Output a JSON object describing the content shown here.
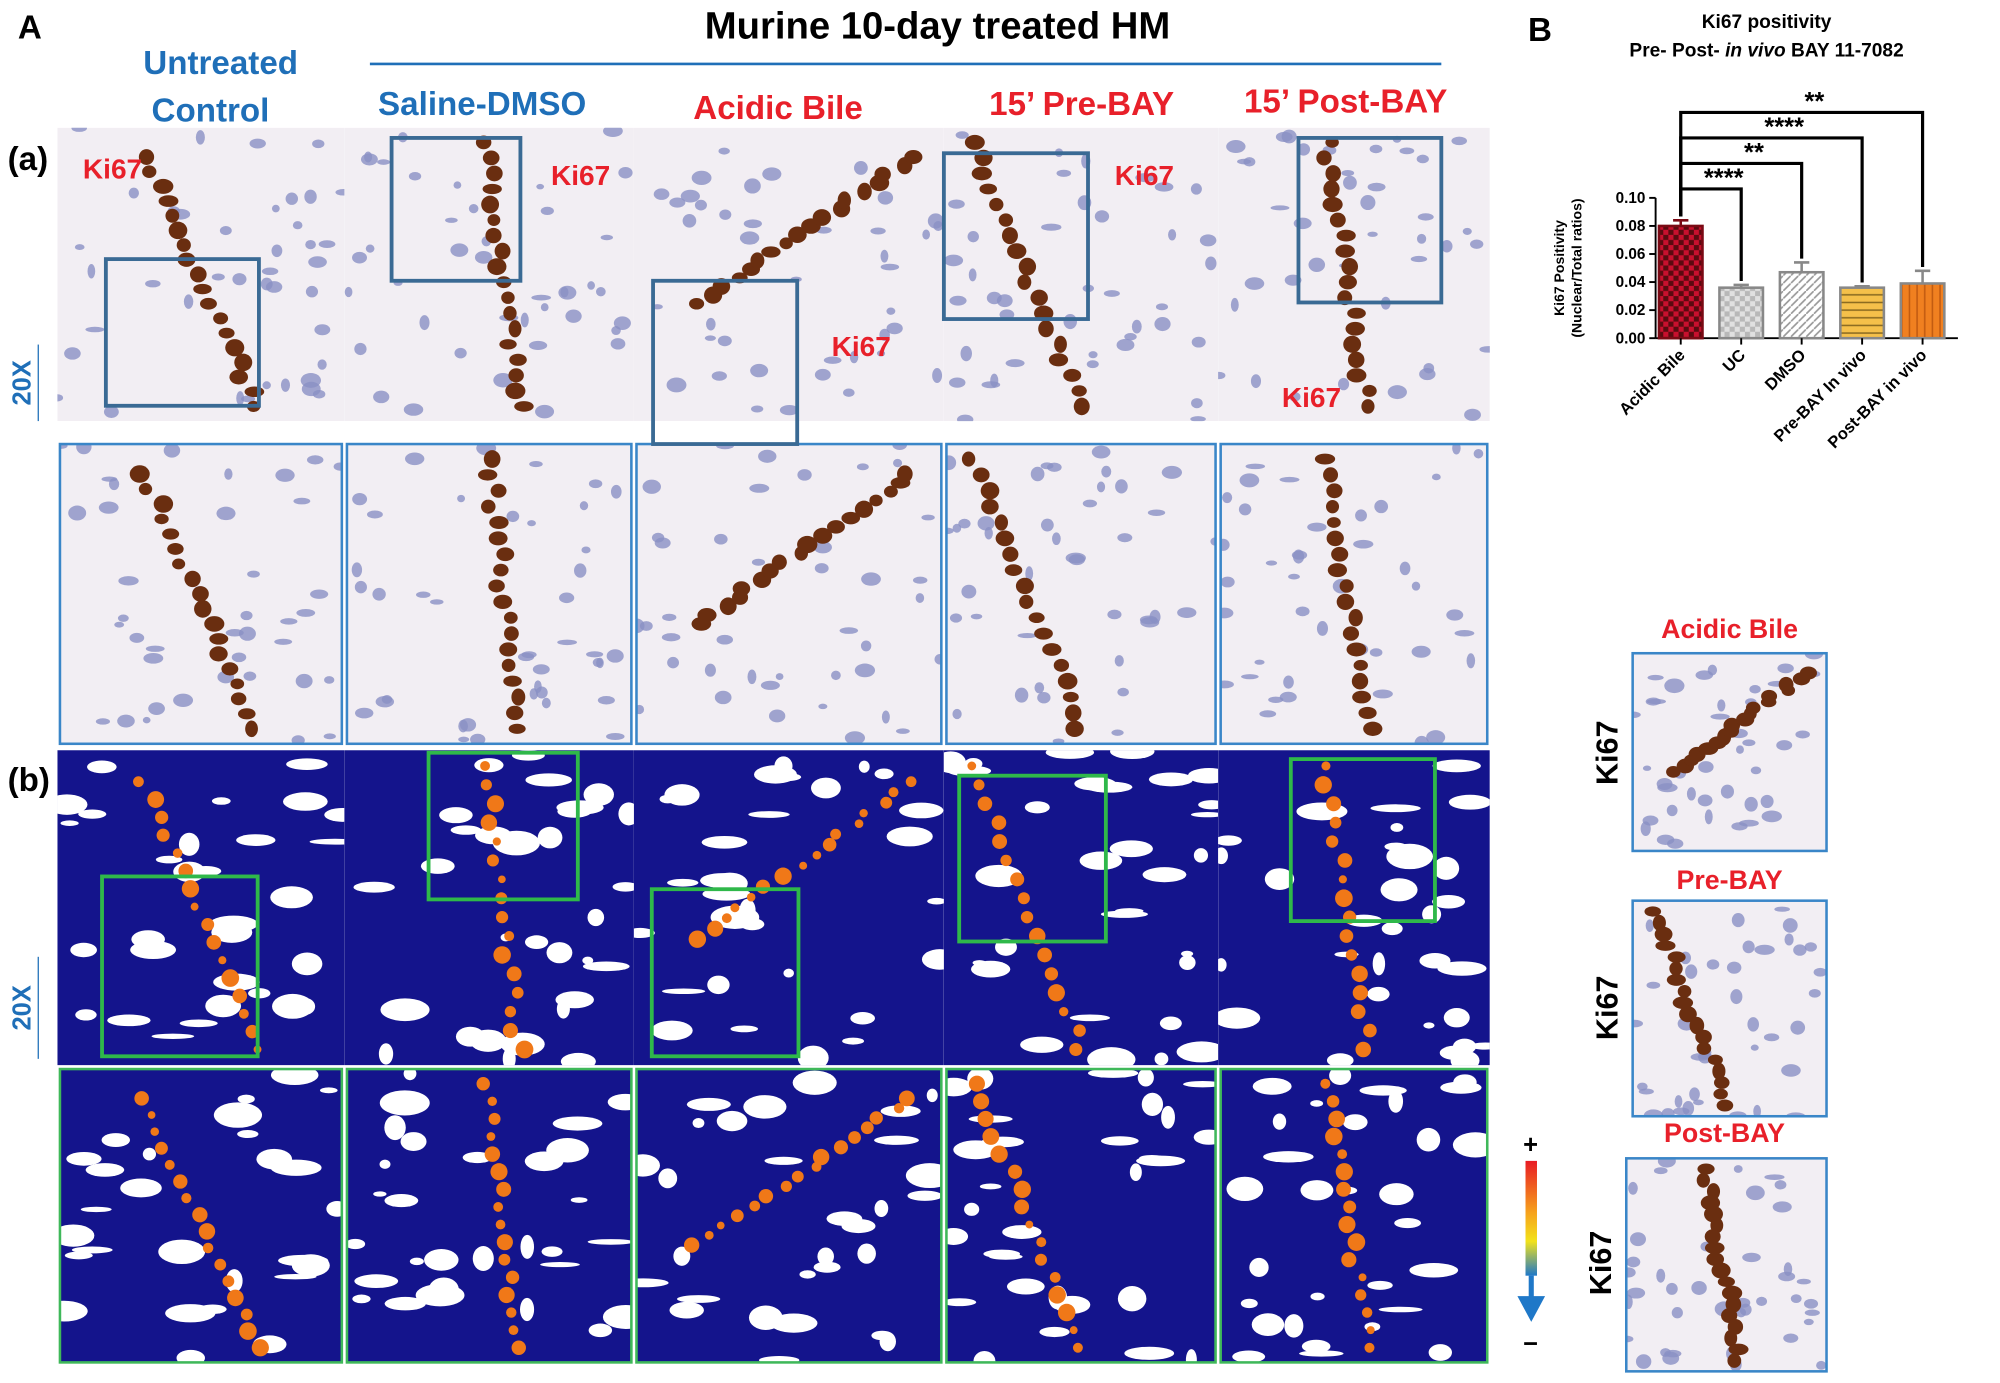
{
  "panel_a": {
    "label": "A",
    "title": "Murine 10-day treated HM",
    "control_header": [
      "Untreated",
      "Control"
    ],
    "columns": [
      "Saline-DMSO",
      "Acidic Bile",
      "15’ Pre-BAY",
      "15’ Post-BAY"
    ],
    "rows": [
      "(a)",
      "(b)"
    ],
    "magnification": [
      "20X",
      "20X"
    ],
    "stain_labels": [
      "Ki67",
      "Ki67",
      "Ki67",
      "Ki67",
      "Ki67"
    ],
    "scale": [
      "+",
      "−"
    ]
  },
  "panel_b": {
    "label": "B",
    "insets": [
      {
        "title": "Acidic Bile",
        "stain": "Ki67"
      },
      {
        "title": "Pre-BAY",
        "stain": "Ki67"
      },
      {
        "title": "Post-BAY",
        "stain": "Ki67"
      }
    ]
  },
  "chart_data": {
    "type": "bar",
    "title": "Ki67 positivity",
    "subtitle": [
      "Pre- Post- ",
      "in vivo",
      " BAY 11-7082"
    ],
    "ylabel": [
      "Ki67 Positivity",
      "(Nuclear/Total ratios)"
    ],
    "categories": [
      "Acidic Bile",
      "UC",
      "DMSO",
      "Pre-BAY In vivo",
      "Post-BAY in vivo"
    ],
    "values": [
      0.08,
      0.036,
      0.047,
      0.036,
      0.039
    ],
    "errors": [
      0.004,
      0.002,
      0.007,
      0.001,
      0.009
    ],
    "colors": [
      "#c8102e",
      "#b8b8b8",
      "#ffffff",
      "#f5c04a",
      "#f08020"
    ],
    "significance": [
      null,
      "****",
      "**",
      "****",
      "**"
    ],
    "ylim": [
      0,
      0.1
    ],
    "yticks": [
      {
        "value": 0,
        "label": "0.00"
      },
      {
        "value": 0.02,
        "label": "0.02"
      },
      {
        "value": 0.04,
        "label": "0.04"
      },
      {
        "value": 0.06,
        "label": "0.06"
      },
      {
        "value": 0.08,
        "label": "0.08"
      },
      {
        "value": 0.1,
        "label": "0.10"
      }
    ]
  }
}
